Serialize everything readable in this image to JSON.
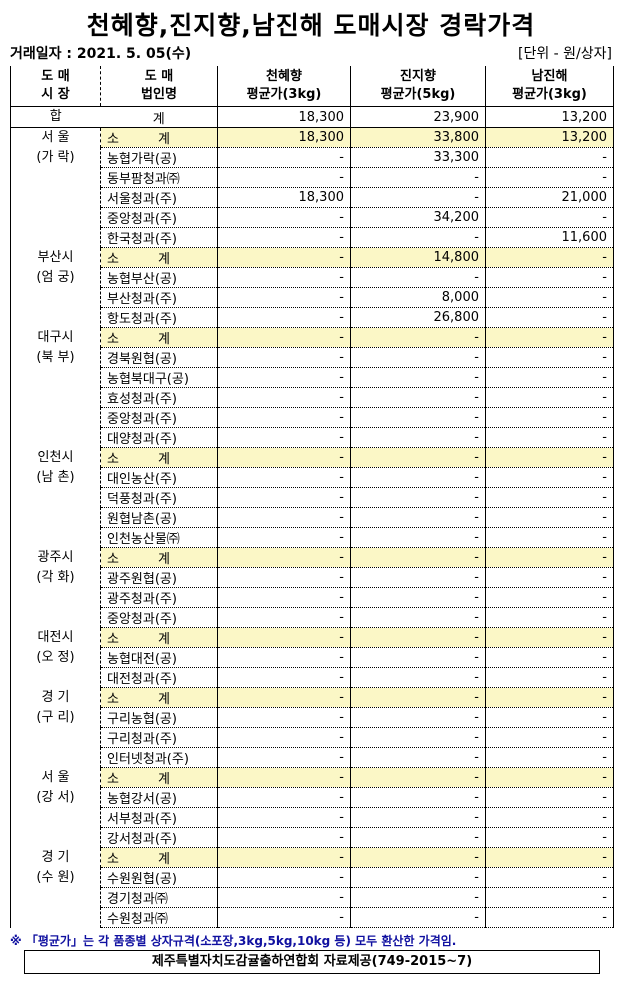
{
  "title": "천혜향,진지향,남진해 도매시장 경락가격",
  "date": "거래일자 : 2021. 5. 05(수)",
  "unit": "[단위 - 원/상자]",
  "headers": {
    "market": [
      "도 매",
      "시 장"
    ],
    "corp": [
      "도 매",
      "법인명"
    ],
    "c1": [
      "천혜향",
      "평균가(3kg)"
    ],
    "c2": [
      "진지향",
      "평균가(5kg)"
    ],
    "c3": [
      "남진해",
      "평균가(3kg)"
    ]
  },
  "total": {
    "label1": "합",
    "label2": "계",
    "values": [
      "18,300",
      "23,900",
      "13,200"
    ]
  },
  "groups": [
    {
      "market": [
        "서 울",
        "(가 락)"
      ],
      "rows": [
        [
          "소　　　계",
          "18,300",
          "33,800",
          "13,200"
        ],
        [
          "농협가락(공)",
          "-",
          "33,300",
          "-"
        ],
        [
          "동부팜청과㈜",
          "-",
          "-",
          "-"
        ],
        [
          "서울청과(주)",
          "18,300",
          "-",
          "21,000"
        ],
        [
          "중앙청과(주)",
          "-",
          "34,200",
          "-"
        ],
        [
          "한국청과(주)",
          "-",
          "-",
          "11,600"
        ]
      ]
    },
    {
      "market": [
        "부산시",
        "(엄 궁)"
      ],
      "rows": [
        [
          "소　　　계",
          "-",
          "14,800",
          "-"
        ],
        [
          "농협부산(공)",
          "-",
          "-",
          "-"
        ],
        [
          "부산청과(주)",
          "-",
          "8,000",
          "-"
        ],
        [
          "항도청과(주)",
          "-",
          "26,800",
          "-"
        ]
      ]
    },
    {
      "market": [
        "대구시",
        "(북 부)"
      ],
      "rows": [
        [
          "소　　　계",
          "-",
          "-",
          "-"
        ],
        [
          "경북원협(공)",
          "-",
          "-",
          "-"
        ],
        [
          "농협북대구(공)",
          "-",
          "-",
          "-"
        ],
        [
          "효성청과(주)",
          "-",
          "-",
          "-"
        ],
        [
          "중앙청과(주)",
          "-",
          "-",
          "-"
        ],
        [
          "대양청과(주)",
          "-",
          "-",
          "-"
        ]
      ]
    },
    {
      "market": [
        "인천시",
        "(남 촌)"
      ],
      "rows": [
        [
          "소　　　계",
          "-",
          "-",
          "-"
        ],
        [
          "대인농산(주)",
          "-",
          "-",
          "-"
        ],
        [
          "덕풍청과(주)",
          "-",
          "-",
          "-"
        ],
        [
          "원협남촌(공)",
          "-",
          "-",
          "-"
        ],
        [
          "인천농산물㈜",
          "-",
          "-",
          "-"
        ]
      ]
    },
    {
      "market": [
        "광주시",
        "(각 화)"
      ],
      "rows": [
        [
          "소　　　계",
          "-",
          "-",
          "-"
        ],
        [
          "광주원협(공)",
          "-",
          "-",
          "-"
        ],
        [
          "광주청과(주)",
          "-",
          "-",
          "-"
        ],
        [
          "중앙청과(주)",
          "-",
          "-",
          "-"
        ]
      ]
    },
    {
      "market": [
        "대전시",
        "(오 정)"
      ],
      "rows": [
        [
          "소　　　계",
          "-",
          "-",
          "-"
        ],
        [
          "농협대전(공)",
          "-",
          "-",
          "-"
        ],
        [
          "대전청과(주)",
          "-",
          "-",
          "-"
        ]
      ]
    },
    {
      "market": [
        "경 기",
        "(구 리)"
      ],
      "rows": [
        [
          "소　　　계",
          "-",
          "-",
          "-"
        ],
        [
          "구리농협(공)",
          "-",
          "-",
          "-"
        ],
        [
          "구리청과(주)",
          "-",
          "-",
          "-"
        ],
        [
          "인터넷청과(주)",
          "-",
          "-",
          "-"
        ]
      ]
    },
    {
      "market": [
        "서 울",
        "(강 서)"
      ],
      "rows": [
        [
          "소　　　계",
          "-",
          "-",
          "-"
        ],
        [
          "농협강서(공)",
          "-",
          "-",
          "-"
        ],
        [
          "서부청과(주)",
          "-",
          "-",
          "-"
        ],
        [
          "강서청과(주)",
          "-",
          "-",
          "-"
        ]
      ]
    },
    {
      "market": [
        "경 기",
        "(수 원)"
      ],
      "rows": [
        [
          "소　　　계",
          "-",
          "-",
          "-"
        ],
        [
          "수원원협(공)",
          "-",
          "-",
          "-"
        ],
        [
          "경기청과㈜",
          "-",
          "-",
          "-"
        ],
        [
          "수원청과㈜",
          "-",
          "-",
          "-"
        ]
      ]
    }
  ],
  "note": "※ 「평균가」는 각 품종별 상자규격(소포장,3kg,5kg,10kg 등) 모두 환산한 가격임.",
  "source": "제주특별자치도감귤출하연합회 자료제공(749-2015~7)",
  "colors": {
    "subtotal_bg": "#fbf7c6",
    "note": "#1010a0"
  }
}
